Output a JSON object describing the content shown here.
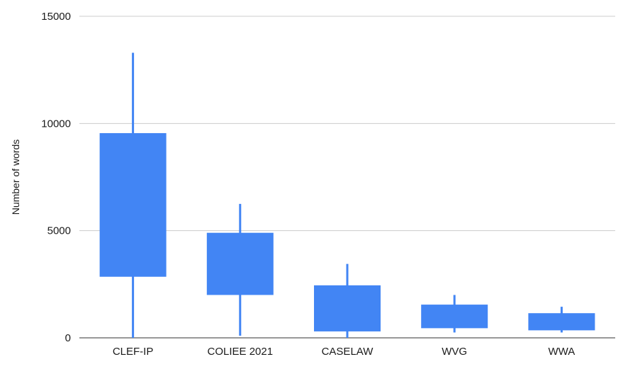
{
  "chart_data": {
    "type": "candlestick",
    "title": "",
    "xlabel": "",
    "ylabel": "Number of words",
    "ylim": [
      0,
      15000
    ],
    "yticks": [
      "0",
      "5000",
      "10000",
      "15000"
    ],
    "grid": true,
    "legend": "none",
    "bar_color": "#4285f4",
    "grid_color": "#cccccc",
    "axis_color": "#333333",
    "categories": [
      "CLEF-IP",
      "COLIEE 2021",
      "CASELAW",
      "WVG",
      "WWA"
    ],
    "series": [
      {
        "low": [
          0,
          100,
          0,
          250,
          250
        ],
        "open": [
          2850,
          2000,
          300,
          450,
          350
        ],
        "close": [
          9550,
          4900,
          2450,
          1550,
          1150
        ],
        "high": [
          13300,
          6250,
          3450,
          2000,
          1450
        ]
      }
    ]
  }
}
